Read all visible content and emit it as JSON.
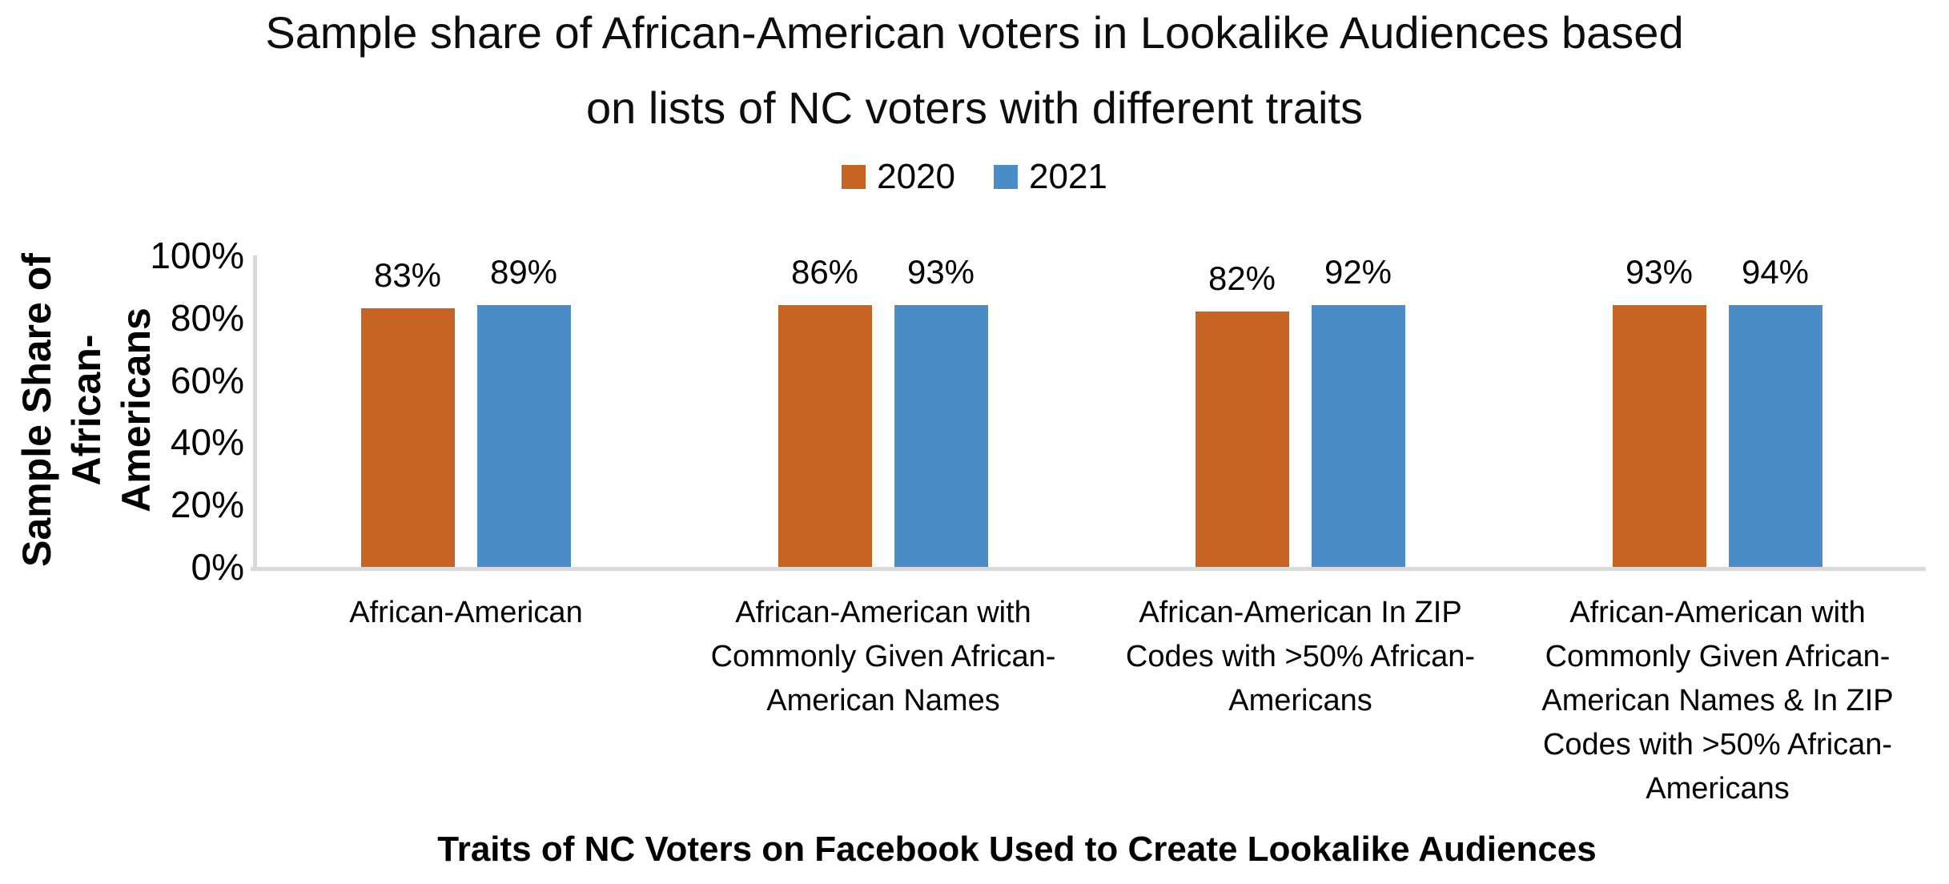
{
  "title": {
    "lines": [
      "Sample share of African-American voters in Lookalike Audiences based",
      "on lists of NC voters with different traits"
    ]
  },
  "legend": {
    "items": [
      {
        "label": "2020",
        "color": "#C66325"
      },
      {
        "label": "2021",
        "color": "#4A8CC8"
      }
    ]
  },
  "y_axis": {
    "title": "Sample Share of African-Americans",
    "title_lines": [
      "Sample Share of",
      "African-Americans"
    ],
    "ticks": [
      "100%",
      "80%",
      "60%",
      "40%",
      "20%",
      "0%"
    ]
  },
  "chart_data": {
    "type": "bar",
    "title": "Sample share of African-American voters in Lookalike Audiences based on lists of NC voters with different traits",
    "xlabel": "Traits of NC Voters on Facebook Used to Create Lookalike Audiences",
    "ylabel": "Sample Share of African-Americans",
    "ylim": [
      0,
      100
    ],
    "yticks": [
      0,
      20,
      40,
      60,
      80,
      100
    ],
    "ytick_format": "percent",
    "grid": false,
    "legend_position": "top-center",
    "data_labels": true,
    "axis_color": "#D9D9D9",
    "categories": [
      "African-American",
      "African-American with Commonly Given African-American Names",
      "African-American In ZIP Codes with >50% African-Americans",
      "African-American with Commonly Given African-American Names & In ZIP Codes with >50% African-Americans"
    ],
    "category_lines": [
      [
        "African-American"
      ],
      [
        "African-American with",
        "Commonly Given African-",
        "American Names"
      ],
      [
        "African-American In ZIP",
        "Codes with >50% African-",
        "Americans"
      ],
      [
        "African-American with",
        "Commonly Given African-",
        "American Names & In ZIP",
        "Codes with >50% African-",
        "Americans"
      ]
    ],
    "series": [
      {
        "name": "2020",
        "color": "#C66325",
        "values": [
          83,
          86,
          82,
          93
        ],
        "labels": [
          "83%",
          "86%",
          "82%",
          "93%"
        ]
      },
      {
        "name": "2021",
        "color": "#4A8CC8",
        "values": [
          89,
          93,
          92,
          94
        ],
        "labels": [
          "89%",
          "93%",
          "92%",
          "94%"
        ]
      }
    ]
  }
}
